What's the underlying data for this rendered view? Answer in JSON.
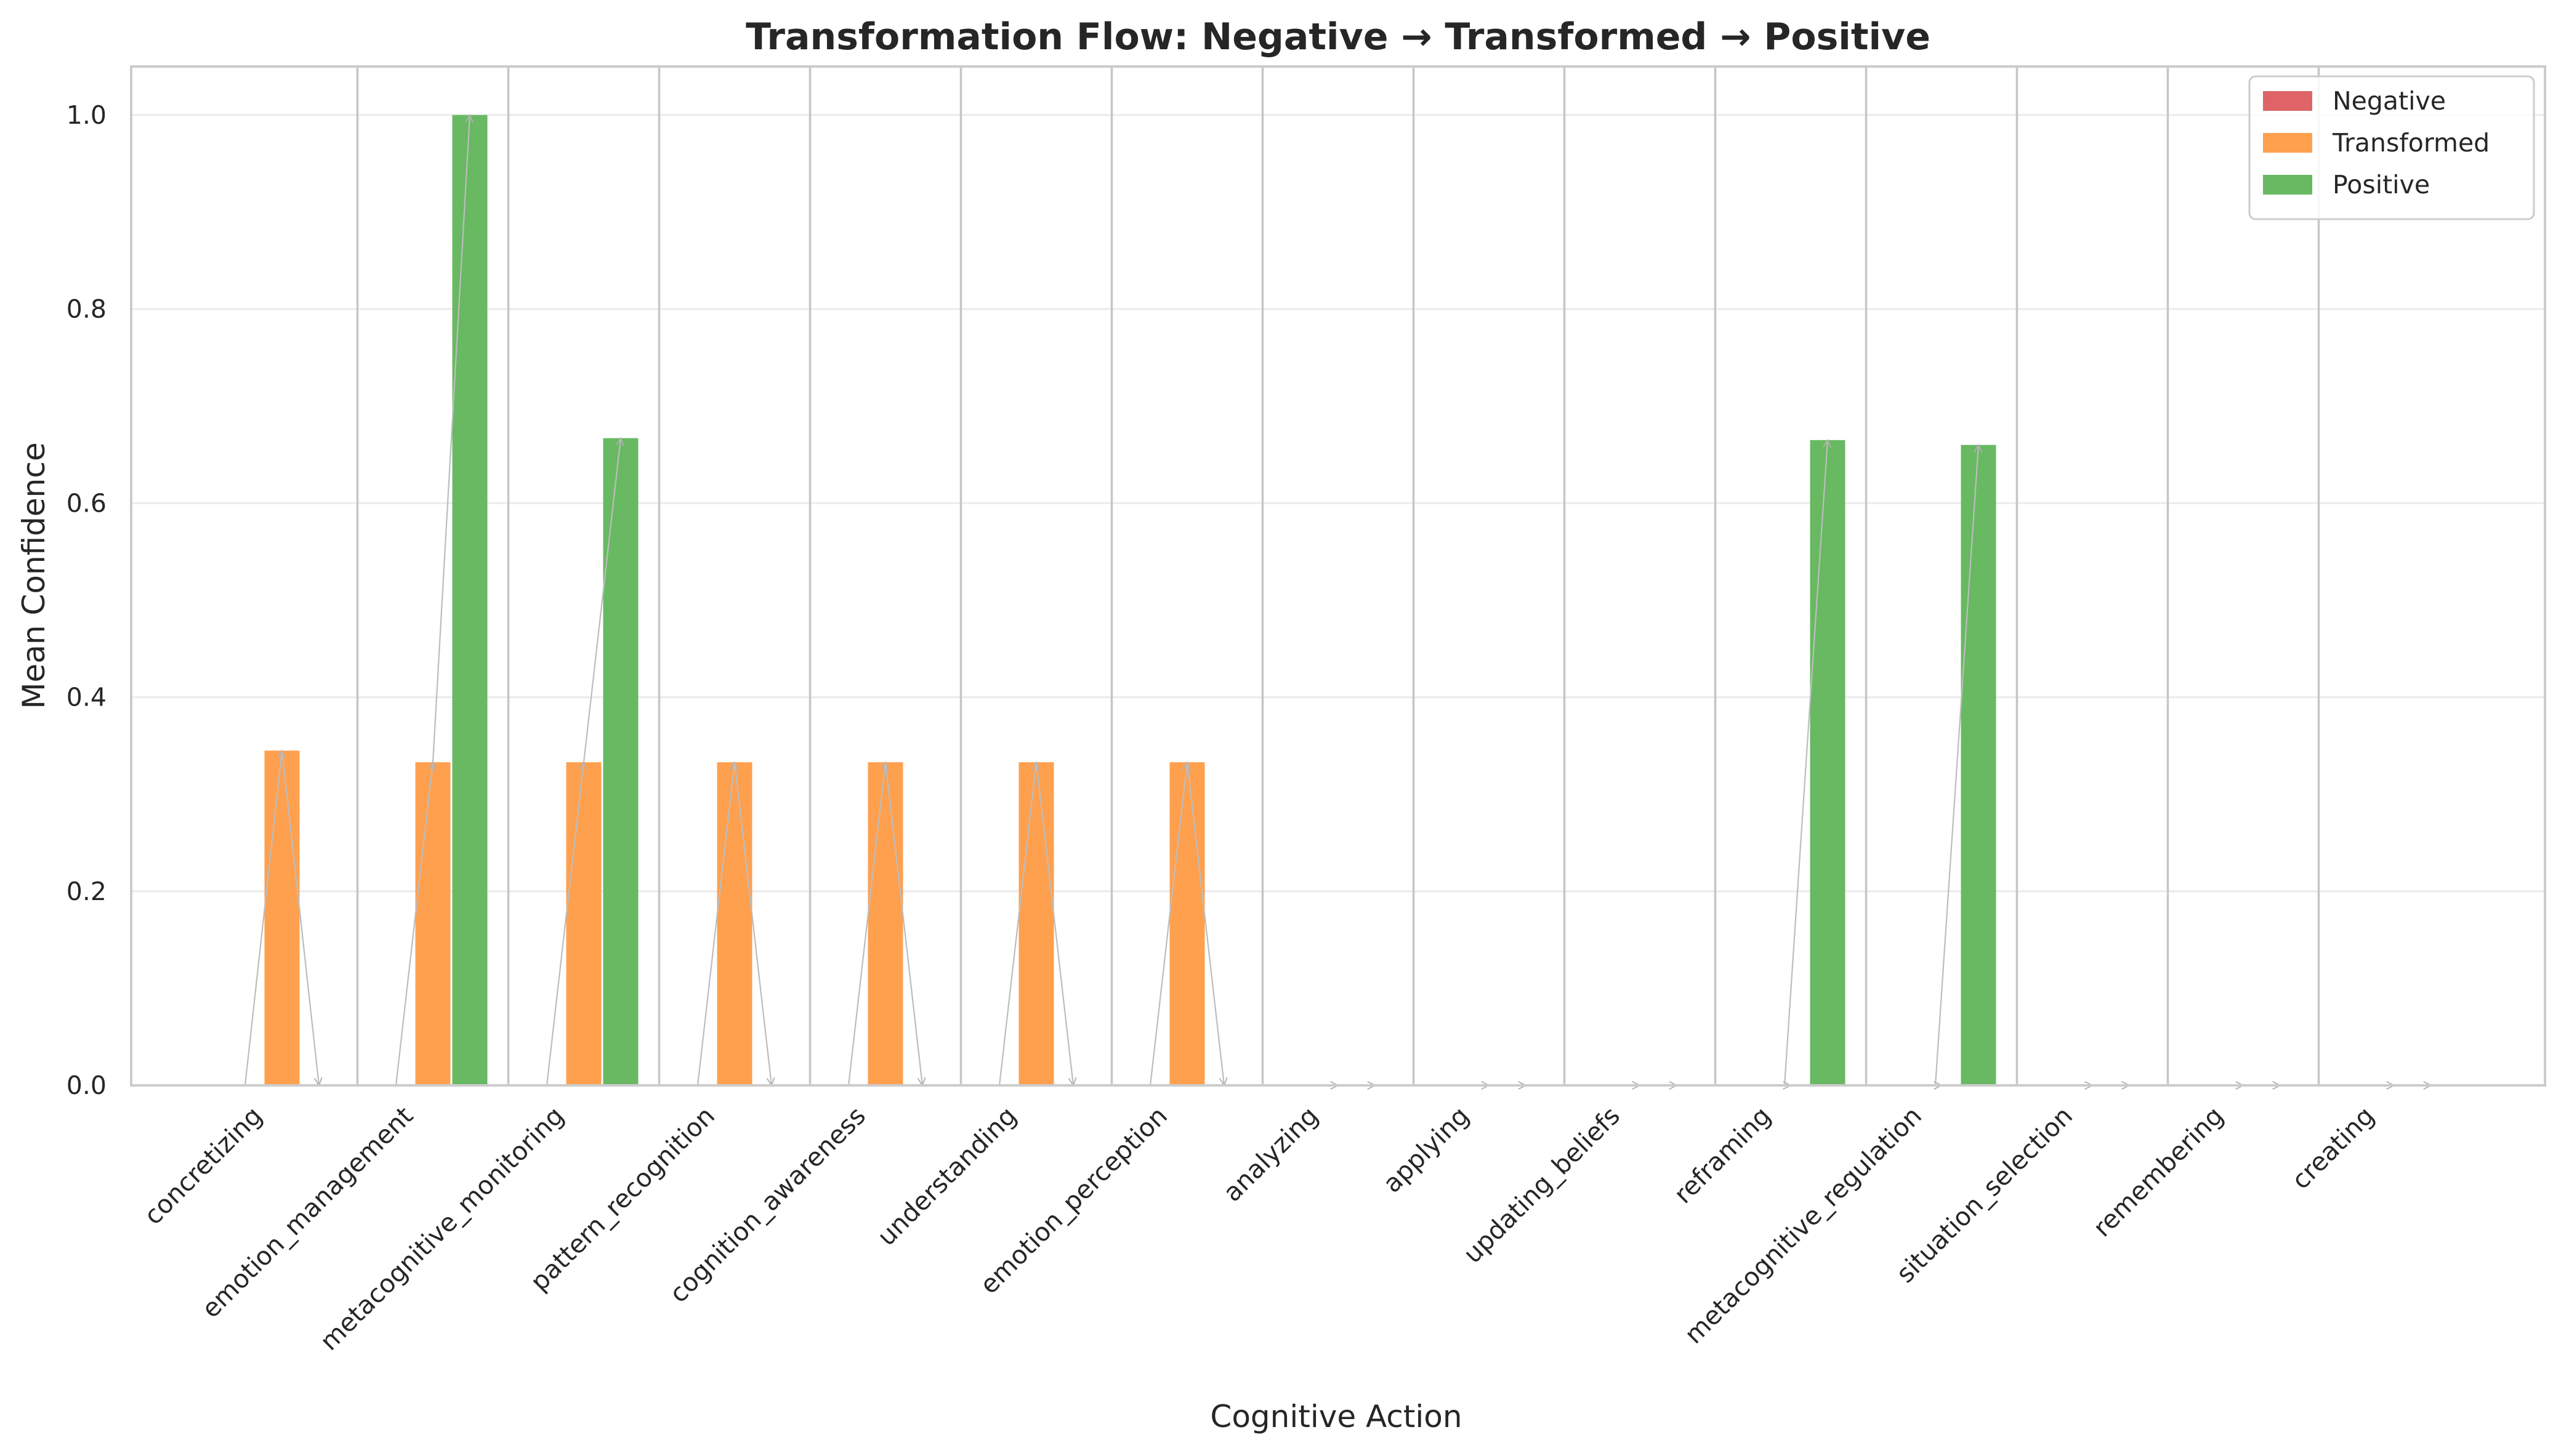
{
  "chart_data": {
    "type": "bar",
    "title": "Transformation Flow: Negative → Transformed → Positive",
    "xlabel": "Cognitive Action",
    "ylabel": "Mean Confidence",
    "ylim": [
      0,
      1.05
    ],
    "yticks": [
      "0.0",
      "0.2",
      "0.4",
      "0.6",
      "0.8",
      "1.0"
    ],
    "grid": true,
    "legend_position": "top-right",
    "categories": [
      "concretizing",
      "emotion_management",
      "metacognitive_monitoring",
      "pattern_recognition",
      "cognition_awareness",
      "understanding",
      "emotion_perception",
      "analyzing",
      "applying",
      "updating_beliefs",
      "reframing",
      "metacognitive_regulation",
      "situation_selection",
      "remembering",
      "creating"
    ],
    "series": [
      {
        "name": "Negative",
        "color": "#de6467",
        "values": [
          0,
          0,
          0,
          0,
          0,
          0,
          0,
          0,
          0,
          0,
          0,
          0,
          0,
          0,
          0
        ]
      },
      {
        "name": "Transformed",
        "color": "#ffa04f",
        "values": [
          0.345,
          0.333,
          0.333,
          0.333,
          0.333,
          0.333,
          0.333,
          0,
          0,
          0,
          0,
          0,
          0,
          0,
          0
        ]
      },
      {
        "name": "Positive",
        "color": "#68b962",
        "values": [
          0,
          1.0,
          0.667,
          0,
          0,
          0,
          0,
          0,
          0,
          0,
          0.665,
          0.66,
          0,
          0,
          0
        ]
      }
    ]
  }
}
